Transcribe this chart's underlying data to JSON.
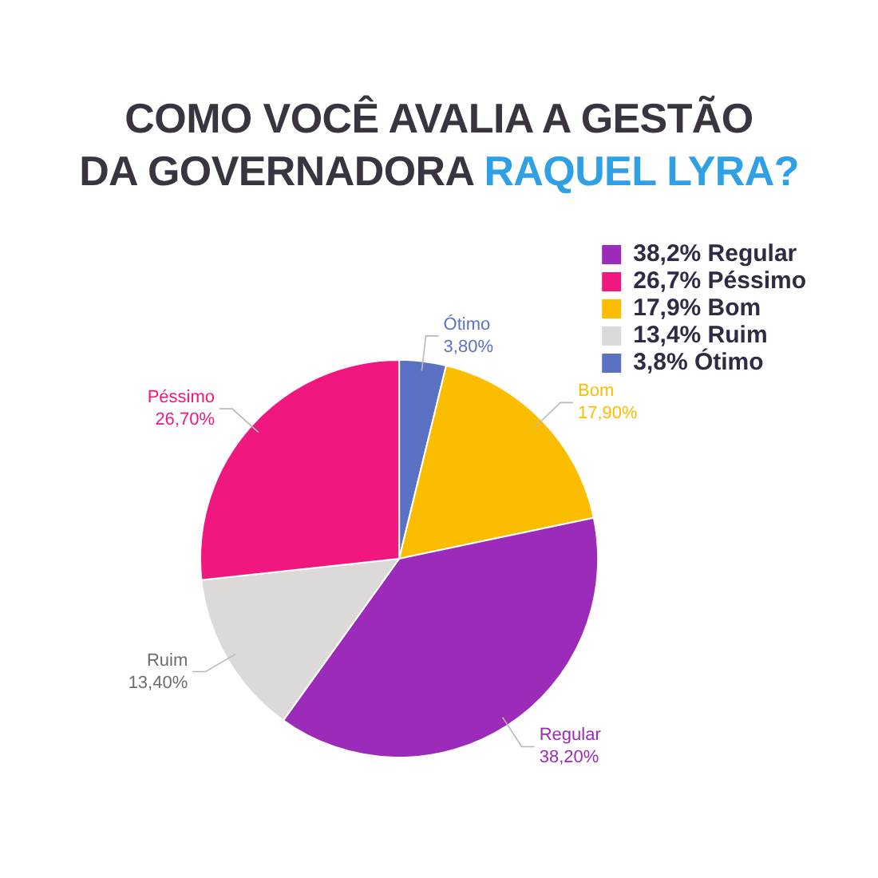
{
  "chart_data": {
    "type": "pie",
    "title": "COMO VOCÊ AVALIA A GESTÃO DA GOVERNADORA RAQUEL LYRA?",
    "categories": [
      "3,8% Ótimo",
      "17,9% Bom",
      "38,2% Regular",
      "13,4% Ruim",
      "26,7% Péssimo"
    ],
    "values": [
      3.8,
      17.9,
      38.2,
      13.4,
      26.7
    ],
    "colors": [
      "#5b72c4",
      "#fbbd00",
      "#9b2bb8",
      "#dcdad8",
      "#f0177f"
    ],
    "value_labels": [
      "Ótimo\n3,80%",
      "Bom\n17,90%",
      "Regular\n38,20%",
      "Ruim\n13,40%",
      "Péssimo\n26,70%"
    ],
    "legend": "top right"
  }
}
